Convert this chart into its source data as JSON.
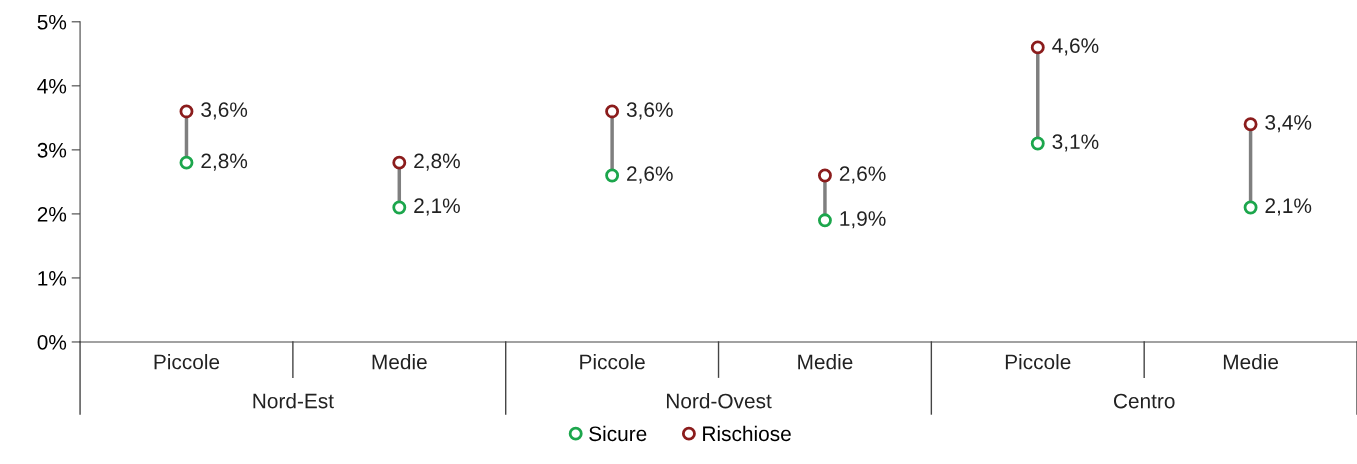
{
  "chart_data": {
    "type": "scatter",
    "categories": [
      "Piccole",
      "Medie",
      "Piccole",
      "Medie",
      "Piccole",
      "Medie"
    ],
    "annotations": [
      "Nord-Est",
      "Nord-Ovest",
      "Centro"
    ],
    "series": [
      {
        "name": "Sicure",
        "color": "#1ca64c",
        "values": [
          2.8,
          2.1,
          2.6,
          1.9,
          3.1,
          2.1
        ],
        "value_labels": [
          "2,8%",
          "2,1%",
          "2,6%",
          "1,9%",
          "3,1%",
          "2,1%"
        ]
      },
      {
        "name": "Rischiose",
        "color": "#8b1c1c",
        "values": [
          3.6,
          2.8,
          3.6,
          2.6,
          4.6,
          3.4
        ],
        "value_labels": [
          "3,6%",
          "2,8%",
          "3,6%",
          "2,6%",
          "4,6%",
          "3,4%"
        ]
      }
    ],
    "ylim": [
      0,
      5
    ],
    "yticks": [
      {
        "value": 0,
        "label": "0%"
      },
      {
        "value": 1,
        "label": "1%"
      },
      {
        "value": 2,
        "label": "2%"
      },
      {
        "value": 3,
        "label": "3%"
      },
      {
        "value": 4,
        "label": "4%"
      },
      {
        "value": 5,
        "label": "5%"
      }
    ],
    "marker": "circle",
    "grid": false,
    "legend": "bottom"
  }
}
